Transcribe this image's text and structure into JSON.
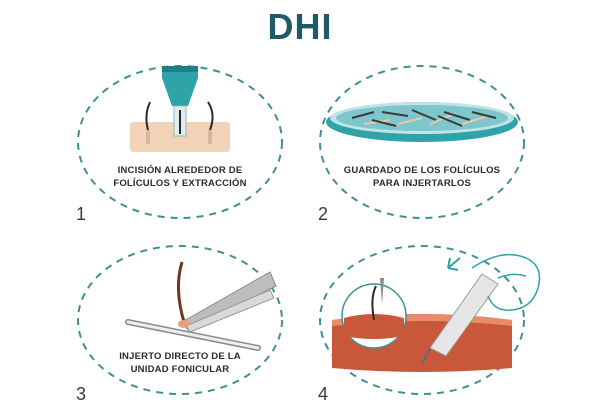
{
  "title": "DHI",
  "colors": {
    "teal": "#2ea3a8",
    "dark_teal": "#1f5a6b",
    "dash": "#3f8f98",
    "skin": "#f2d3b8",
    "red_skin": "#c9573a"
  },
  "steps": [
    {
      "number": "1",
      "caption_line1": "INCISIÓN ALREDEDOR DE",
      "caption_line2": "FOLÍCULOS Y EXTRACCIÓN"
    },
    {
      "number": "2",
      "caption_line1": "GUARDADO DE LOS FOLÍCULOS",
      "caption_line2": "PARA INJERTARLOS"
    },
    {
      "number": "3",
      "caption_line1": "INJERTO DIRECTO DE LA",
      "caption_line2": "UNIDAD FONICULAR"
    },
    {
      "number": "4",
      "caption_line1": "",
      "caption_line2": ""
    }
  ]
}
